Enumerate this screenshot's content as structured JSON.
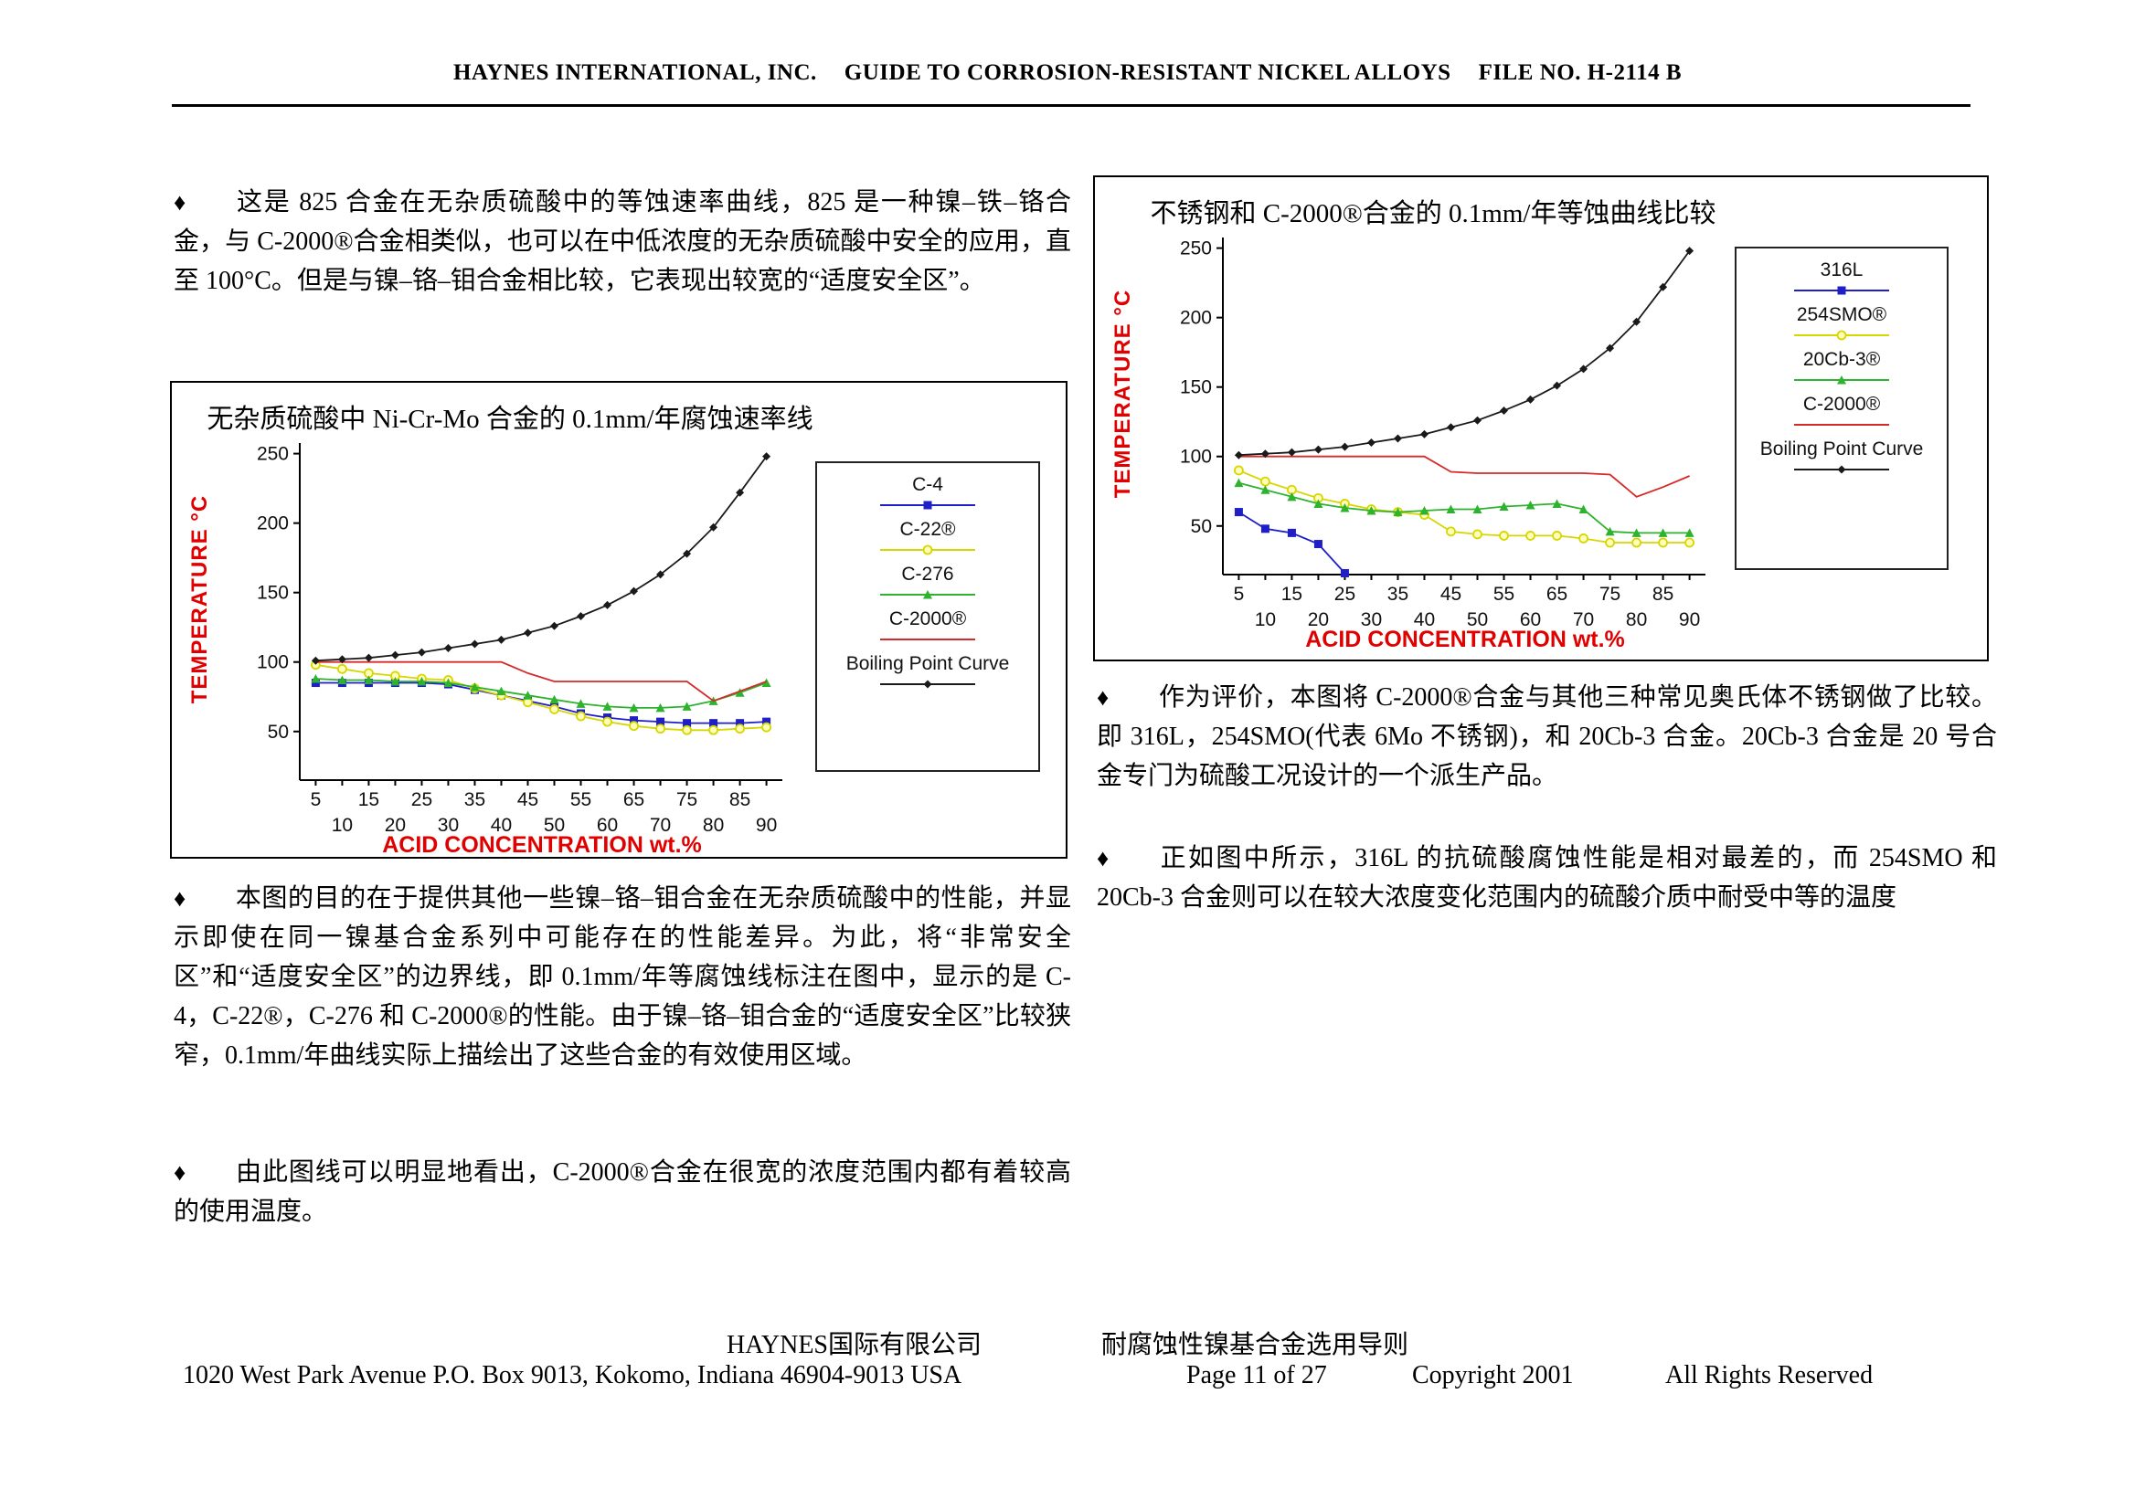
{
  "bullet": "♦",
  "header": {
    "company": "HAYNES INTERNATIONAL, INC.",
    "doc_title": "GUIDE TO CORROSION-RESISTANT NICKEL ALLOYS",
    "file_no": "FILE NO. H-2114 B"
  },
  "left_column": {
    "para1": "这是 825 合金在无杂质硫酸中的等蚀速率曲线，825 是一种镍–铁–铬合金，与 C-2000®合金相类似，也可以在中低浓度的无杂质硫酸中安全的应用，直至 100°C。但是与镍–铬–钼合金相比较，它表现出较宽的“适度安全区”。",
    "para2": "本图的目的在于提供其他一些镍–铬–钼合金在无杂质硫酸中的性能，并显示即使在同一镍基合金系列中可能存在的性能差异。为此，将“非常安全区”和“适度安全区”的边界线，即 0.1mm/年等腐蚀线标注在图中，显示的是 C-4，C-22®，C-276 和 C-2000®的性能。由于镍–铬–钼合金的“适度安全区”比较狭窄，0.1mm/年曲线实际上描绘出了这些合金的有效使用区域。",
    "para3": "由此图线可以明显地看出，C-2000®合金在很宽的浓度范围内都有着较高的使用温度。"
  },
  "right_column": {
    "para1": "作为评价，本图将 C-2000®合金与其他三种常见奥氏体不锈钢做了比较。即 316L，254SMO(代表 6Mo 不锈钢)，和 20Cb-3 合金。20Cb-3 合金是 20 号合金专门为硫酸工况设计的一个派生产品。",
    "para2": "正如图中所示，316L 的抗硫酸腐蚀性能是相对最差的，而 254SMO 和 20Cb-3 合金则可以在较大浓度变化范围内的硫酸介质中耐受中等的温度"
  },
  "footer": {
    "company_cn": "HAYNES国际有限公司",
    "doc_title_cn": "耐腐蚀性镍基合金选用导则",
    "address": "1020 West Park Avenue P.O. Box 9013, Kokomo, Indiana 46904-9013 USA",
    "page_info": "Page 11 of 27",
    "copyright": "Copyright 2001",
    "rights": "All Rights Reserved"
  },
  "chart_data": [
    {
      "type": "line",
      "title": "无杂质硫酸中 Ni-Cr-Mo 合金的 0.1mm/年腐蚀速率线",
      "xlabel": "ACID CONCENTRATION  wt.%",
      "ylabel": "TEMPERATURE  °C",
      "axis_label_color": "#e00000",
      "grid": false,
      "legend_position": "right",
      "xlim": [
        2,
        93
      ],
      "ylim": [
        15,
        255
      ],
      "x_ticks": [
        5,
        10,
        15,
        20,
        25,
        30,
        35,
        40,
        45,
        50,
        55,
        60,
        65,
        70,
        75,
        80,
        85,
        90
      ],
      "y_ticks": [
        50,
        100,
        150,
        200,
        250
      ],
      "x": [
        5,
        10,
        15,
        20,
        25,
        30,
        35,
        40,
        45,
        50,
        55,
        60,
        65,
        70,
        75,
        80,
        85,
        90
      ],
      "series": [
        {
          "name": "C-4",
          "color": "#1f1fc8",
          "marker": "square",
          "values": [
            85,
            85,
            85,
            85,
            85,
            84,
            80,
            76,
            72,
            68,
            63,
            60,
            58,
            57,
            56,
            56,
            56,
            57
          ]
        },
        {
          "name": "C-22®",
          "color": "#d6d600",
          "marker": "circle",
          "values": [
            98,
            95,
            92,
            90,
            88,
            87,
            81,
            76,
            71,
            66,
            61,
            57,
            54,
            52,
            51,
            51,
            52,
            53
          ]
        },
        {
          "name": "C-276",
          "color": "#2db32d",
          "marker": "triangle",
          "values": [
            88,
            87,
            87,
            86,
            86,
            85,
            82,
            79,
            76,
            73,
            70,
            68,
            67,
            67,
            68,
            72,
            78,
            85
          ]
        },
        {
          "name": "C-2000®",
          "color": "#d42a2a",
          "marker": "none",
          "values": [
            100,
            100,
            100,
            100,
            100,
            100,
            100,
            100,
            92,
            86,
            86,
            86,
            86,
            86,
            86,
            72,
            79,
            86
          ]
        },
        {
          "name": "Boiling Point Curve",
          "color": "#1a1a1a",
          "marker": "diamond",
          "values": [
            101,
            102,
            103,
            105,
            107,
            110,
            113,
            116,
            121,
            126,
            133,
            141,
            151,
            163,
            178,
            197,
            222,
            248
          ]
        }
      ]
    },
    {
      "type": "line",
      "title": "不锈钢和 C-2000®合金的 0.1mm/年等蚀曲线比较",
      "xlabel": "ACID CONCENTRATION  wt.%",
      "ylabel": "TEMPERATURE  °C",
      "axis_label_color": "#e00000",
      "grid": false,
      "legend_position": "right",
      "xlim": [
        2,
        93
      ],
      "ylim": [
        15,
        255
      ],
      "x_ticks": [
        5,
        10,
        15,
        20,
        25,
        30,
        35,
        40,
        45,
        50,
        55,
        60,
        65,
        70,
        75,
        80,
        85,
        90
      ],
      "y_ticks": [
        50,
        100,
        150,
        200,
        250
      ],
      "x": [
        5,
        10,
        15,
        20,
        25,
        30,
        35,
        40,
        45,
        50,
        55,
        60,
        65,
        70,
        75,
        80,
        85,
        90
      ],
      "series": [
        {
          "name": "316L",
          "color": "#1f1fc8",
          "marker": "square",
          "values": [
            60,
            48,
            45,
            37,
            16
          ]
        },
        {
          "name": "254SMO®",
          "color": "#d6d600",
          "marker": "circle",
          "values": [
            90,
            82,
            76,
            70,
            66,
            62,
            60,
            58,
            46,
            44,
            43,
            43,
            43,
            41,
            38,
            38,
            38,
            38
          ]
        },
        {
          "name": "20Cb-3®",
          "color": "#2db32d",
          "marker": "triangle",
          "values": [
            81,
            76,
            71,
            66,
            63,
            61,
            60,
            61,
            62,
            62,
            64,
            65,
            66,
            62,
            46,
            45,
            45,
            45
          ]
        },
        {
          "name": "C-2000®",
          "color": "#d42a2a",
          "marker": "none",
          "values": [
            100,
            100,
            100,
            100,
            100,
            100,
            100,
            100,
            89,
            88,
            88,
            88,
            88,
            88,
            87,
            71,
            78,
            86
          ]
        },
        {
          "name": "Boiling Point Curve",
          "color": "#1a1a1a",
          "marker": "diamond",
          "values": [
            101,
            102,
            103,
            105,
            107,
            110,
            113,
            116,
            121,
            126,
            133,
            141,
            151,
            163,
            178,
            197,
            222,
            248
          ]
        }
      ]
    }
  ]
}
